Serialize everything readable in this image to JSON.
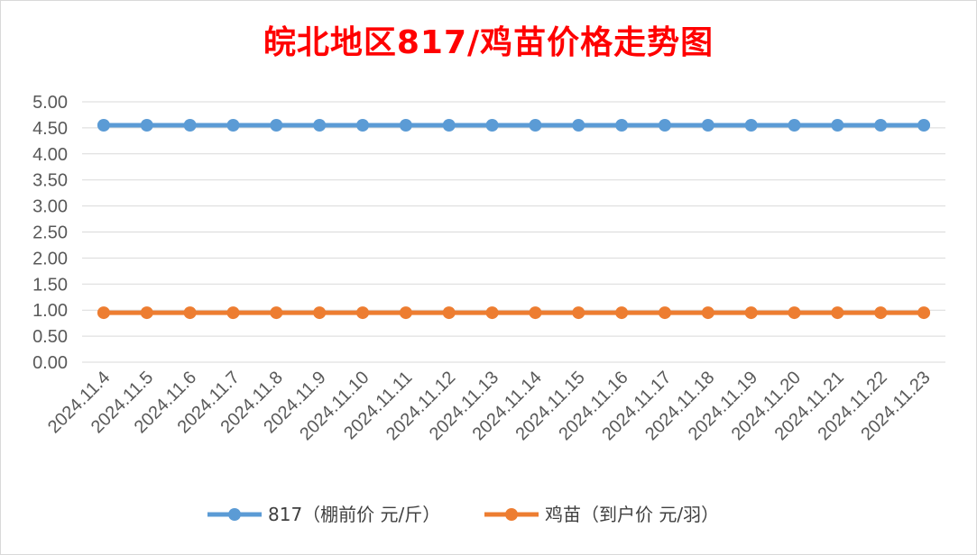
{
  "chart_data": {
    "type": "line",
    "title_parts": [
      "皖北地区",
      "817",
      "/鸡苗价格走势图"
    ],
    "categories": [
      "2024.11.4",
      "2024.11.5",
      "2024.11.6",
      "2024.11.7",
      "2024.11.8",
      "2024.11.9",
      "2024.11.10",
      "2024.11.11",
      "2024.11.12",
      "2024.11.13",
      "2024.11.14",
      "2024.11.15",
      "2024.11.16",
      "2024.11.17",
      "2024.11.18",
      "2024.11.19",
      "2024.11.20",
      "2024.11.21",
      "2024.11.22",
      "2024.11.23"
    ],
    "series": [
      {
        "name": "817（棚前价 元/斤）",
        "color": "#5b9bd5",
        "values": [
          4.55,
          4.55,
          4.55,
          4.55,
          4.55,
          4.55,
          4.55,
          4.55,
          4.55,
          4.55,
          4.55,
          4.55,
          4.55,
          4.55,
          4.55,
          4.55,
          4.55,
          4.55,
          4.55,
          4.55
        ]
      },
      {
        "name": "鸡苗（到户价 元/羽）",
        "color": "#ed7d31",
        "values": [
          0.95,
          0.95,
          0.95,
          0.95,
          0.95,
          0.95,
          0.95,
          0.95,
          0.95,
          0.95,
          0.95,
          0.95,
          0.95,
          0.95,
          0.95,
          0.95,
          0.95,
          0.95,
          0.95,
          0.95
        ]
      }
    ],
    "y_ticks": [
      "0.00",
      "0.50",
      "1.00",
      "1.50",
      "2.00",
      "2.50",
      "3.00",
      "3.50",
      "4.00",
      "4.50",
      "5.00"
    ],
    "ylim": [
      0,
      5
    ],
    "grid": true,
    "legend_position": "bottom",
    "title_color": "#ff0000",
    "grid_color": "#d9d9d9"
  }
}
